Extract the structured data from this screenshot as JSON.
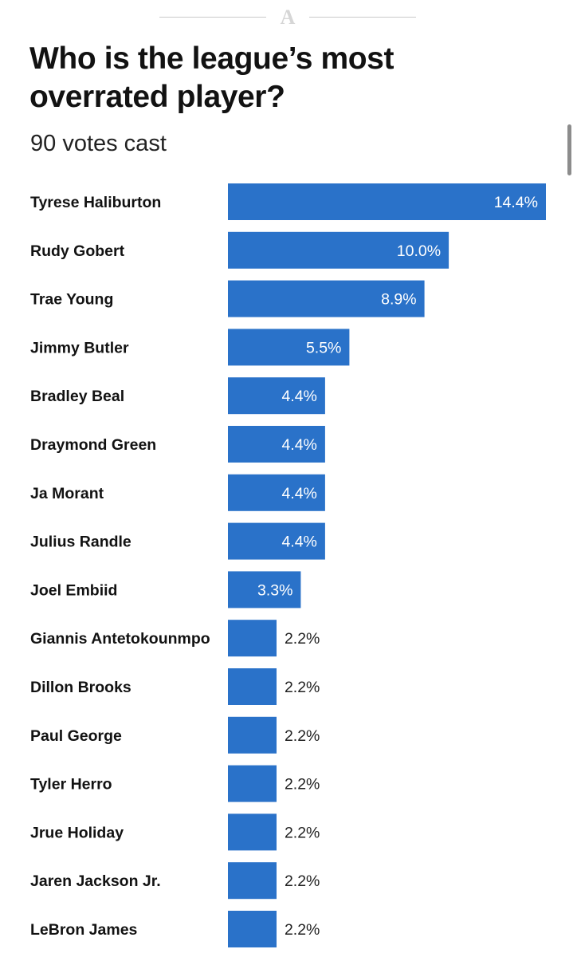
{
  "page": {
    "title": "Who is the league’s most overrated player?",
    "subtitle": "90 votes cast"
  },
  "icons": {
    "logo": "athletic-logo-icon",
    "scrollbar": "scrollbar-thumb"
  },
  "colors": {
    "bar": "#2a72c9",
    "text": "#121212",
    "rule": "#c9c9c9"
  },
  "chart_data": {
    "type": "bar",
    "orientation": "horizontal",
    "categories": [
      "Tyrese Haliburton",
      "Rudy Gobert",
      "Trae Young",
      "Jimmy Butler",
      "Bradley Beal",
      "Draymond Green",
      "Ja Morant",
      "Julius Randle",
      "Joel Embiid",
      "Giannis Antetokounmpo",
      "Dillon Brooks",
      "Paul George",
      "Tyler Herro",
      "Jrue Holiday",
      "Jaren Jackson Jr.",
      "LeBron James"
    ],
    "values": [
      14.4,
      10.0,
      8.9,
      5.5,
      4.4,
      4.4,
      4.4,
      4.4,
      3.3,
      2.2,
      2.2,
      2.2,
      2.2,
      2.2,
      2.2,
      2.2
    ],
    "value_labels": [
      "14.4%",
      "10.0%",
      "8.9%",
      "5.5%",
      "4.4%",
      "4.4%",
      "4.4%",
      "4.4%",
      "3.3%",
      "2.2%",
      "2.2%",
      "2.2%",
      "2.2%",
      "2.2%",
      "2.2%",
      "2.2%"
    ],
    "unit": "%",
    "title": "Who is the league’s most overrated player?",
    "subtitle": "90 votes cast",
    "xlabel": "",
    "ylabel": "",
    "xlim": [
      0,
      14.4
    ],
    "grid": false,
    "legend": "none"
  }
}
